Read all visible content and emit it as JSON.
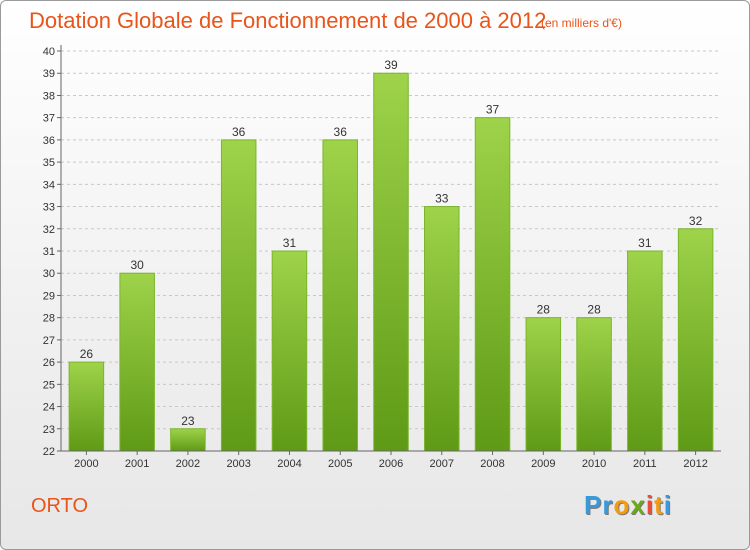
{
  "header": {
    "title": "Dotation Globale de Fonctionnement de 2000 à 2012",
    "unit": "(en milliers d'€)"
  },
  "footer": {
    "commune": "ORTO",
    "logo": {
      "letters": [
        "P",
        "r",
        "o",
        "x",
        "i",
        "t",
        "i"
      ],
      "colors": [
        "#3a9ad9",
        "#3a9ad9",
        "#f39c12",
        "#6aaa1a",
        "#e74c3c",
        "#f39c12",
        "#3a9ad9"
      ]
    }
  },
  "colors": {
    "accent": "#e8541a",
    "bar_top": "#9ed34a",
    "bar_bottom": "#5f9a16",
    "grid": "#c8c8c8",
    "text": "#333333"
  },
  "chart_data": {
    "type": "bar",
    "categories": [
      "2000",
      "2001",
      "2002",
      "2003",
      "2004",
      "2005",
      "2006",
      "2007",
      "2008",
      "2009",
      "2010",
      "2011",
      "2012"
    ],
    "values": [
      26,
      30,
      23,
      36,
      31,
      36,
      39,
      33,
      37,
      28,
      28,
      31,
      32
    ],
    "title": "Dotation Globale de Fonctionnement de 2000 à 2012",
    "subtitle": "(en milliers d'€)",
    "ylim": [
      22,
      40
    ],
    "yticks": [
      22,
      23,
      24,
      25,
      26,
      27,
      28,
      29,
      30,
      31,
      32,
      33,
      34,
      35,
      36,
      37,
      38,
      39,
      40
    ],
    "grid": true,
    "data_labels": true
  }
}
